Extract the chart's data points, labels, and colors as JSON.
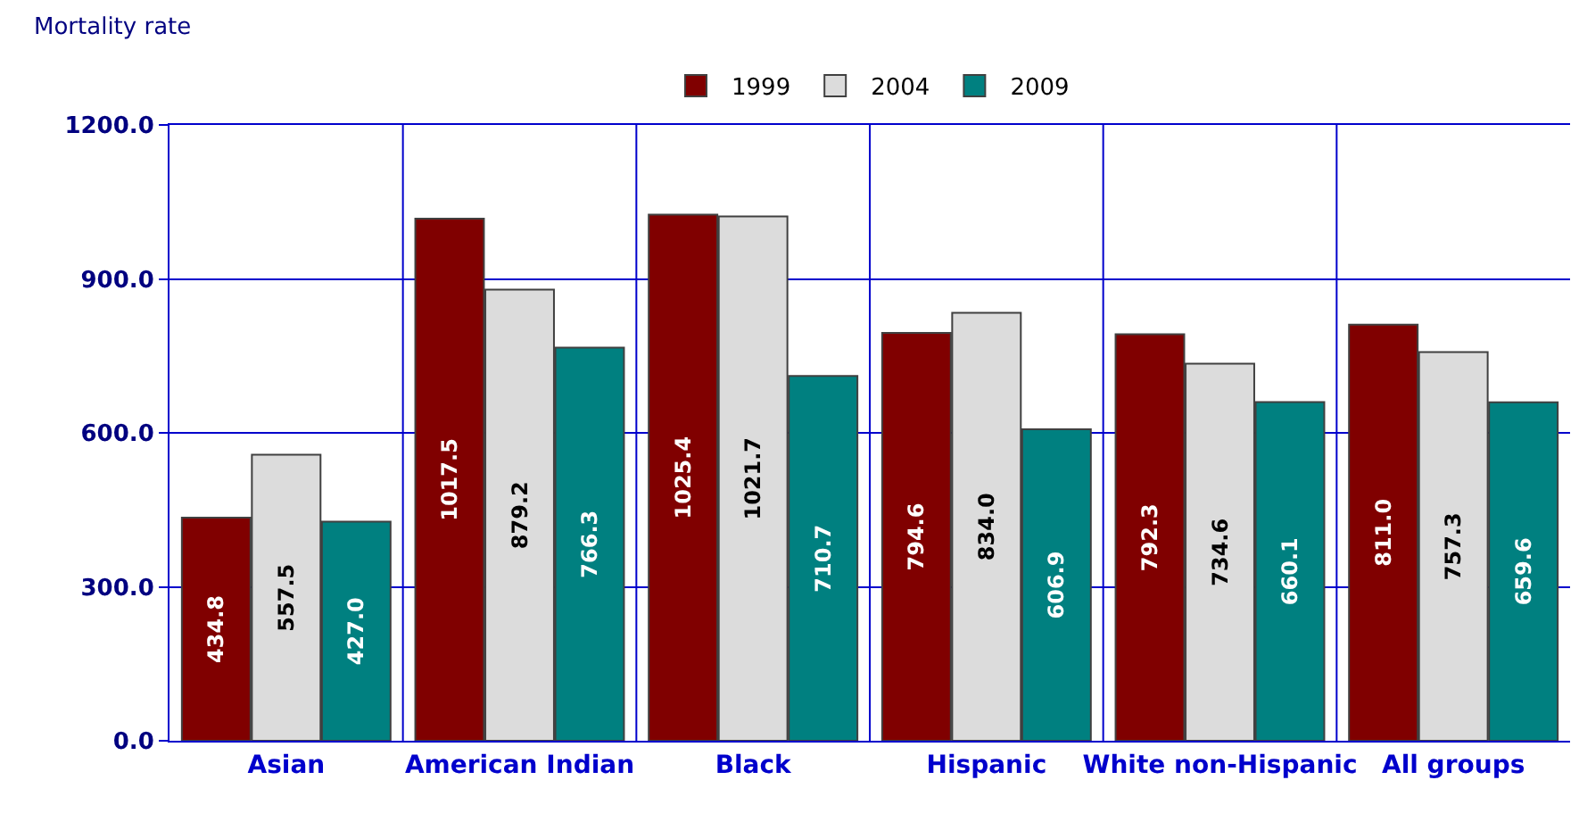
{
  "chart_data": {
    "type": "bar",
    "ylabel": "Mortality rate",
    "categories": [
      "Asian",
      "American Indian",
      "Black",
      "Hispanic",
      "White non-Hispanic",
      "All groups"
    ],
    "series": [
      {
        "name": "1999",
        "color": "#800000",
        "values": [
          434.8,
          1017.5,
          1025.4,
          794.6,
          792.3,
          811.0
        ],
        "value_labels": [
          "434.8",
          "1017.5",
          "1025.4",
          "794.6",
          "792.3",
          "811.0"
        ]
      },
      {
        "name": "2004",
        "color": "#dcdcdc",
        "values": [
          557.5,
          879.2,
          1021.7,
          834.0,
          734.6,
          757.3
        ],
        "value_labels": [
          "557.5",
          "879.2",
          "1021.7",
          "834.0",
          "734.6",
          "757.3"
        ]
      },
      {
        "name": "2009",
        "color": "#008080",
        "values": [
          427.0,
          766.3,
          710.7,
          606.9,
          660.1,
          659.6
        ],
        "value_labels": [
          "427.0",
          "766.3",
          "710.7",
          "606.9",
          "660.1",
          "659.6"
        ]
      }
    ],
    "ylim": [
      0,
      1200
    ],
    "yticks": [
      {
        "value": 0,
        "label": "0.0"
      },
      {
        "value": 300,
        "label": "300.0"
      },
      {
        "value": 600,
        "label": "600.0"
      },
      {
        "value": 900,
        "label": "900.0"
      },
      {
        "value": 1200,
        "label": "1200.0"
      }
    ],
    "grid": true,
    "legend": "top"
  }
}
